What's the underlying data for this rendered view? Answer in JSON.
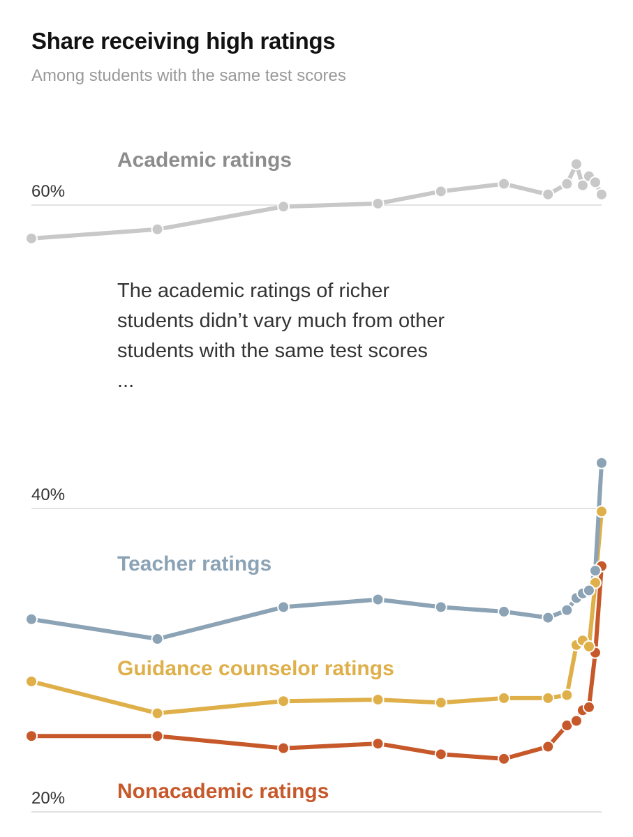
{
  "header": {
    "title": "Share receiving high ratings",
    "subtitle": "Among students with the same test scores"
  },
  "annotation": "The academic ratings of richer students didn’t vary much from other students with the same test scores ...",
  "chart_data": {
    "type": "line",
    "title": "Share receiving high ratings",
    "subtitle": "Among students with the same test scores",
    "xlabel": "",
    "ylabel": "",
    "ylim": [
      20,
      60
    ],
    "yticks": [
      20,
      40,
      60
    ],
    "ytick_labels": [
      "20%",
      "40%",
      "60%"
    ],
    "grid": true,
    "legend": "inline labels",
    "x": [
      0,
      20,
      40,
      55,
      65,
      75,
      82,
      85,
      86.5,
      87.5,
      88.5,
      89.5,
      90.5
    ],
    "series": [
      {
        "name": "Academic ratings",
        "color": "#c8c8c8",
        "label_color": "#8c8c8c",
        "values": [
          57.8,
          58.4,
          59.9,
          60.1,
          60.9,
          61.4,
          60.7,
          61.4,
          62.7,
          61.3,
          61.9,
          61.5,
          60.7
        ]
      },
      {
        "name": "Teacher ratings",
        "color": "#8ba3b5",
        "label_color": "#8ba3b5",
        "values": [
          32.7,
          31.4,
          33.5,
          34.0,
          33.5,
          33.2,
          32.8,
          33.3,
          34.1,
          34.4,
          34.6,
          35.9,
          43.0
        ]
      },
      {
        "name": "Guidance counselor ratings",
        "color": "#dfb04a",
        "label_color": "#dfb04a",
        "values": [
          28.6,
          26.5,
          27.3,
          27.4,
          27.2,
          27.5,
          27.5,
          27.7,
          31.0,
          31.3,
          30.9,
          35.1,
          39.8
        ]
      },
      {
        "name": "Nonacademic ratings",
        "color": "#c6582a",
        "label_color": "#c6582a",
        "values": [
          25.0,
          25.0,
          24.2,
          24.5,
          23.8,
          23.5,
          24.3,
          25.7,
          26.0,
          26.7,
          26.9,
          30.5,
          36.2
        ]
      }
    ]
  }
}
